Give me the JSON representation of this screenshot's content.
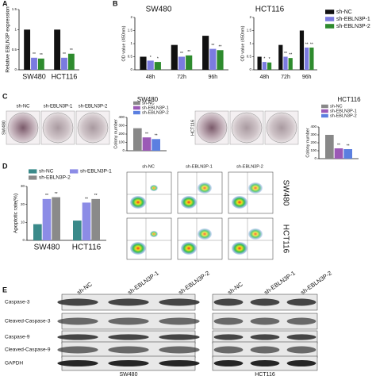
{
  "panel_labels": [
    "A",
    "B",
    "C",
    "D",
    "E"
  ],
  "chart_data": [
    {
      "type": "bar",
      "ylabel": "Relative EBLN3P expression",
      "categories": [
        "SW480",
        "HCT116"
      ],
      "ylim": [
        0,
        1.5
      ],
      "yticks": [
        0,
        0.5,
        1,
        1.5
      ],
      "legend": false,
      "series": [
        {
          "color": "#111111",
          "values": [
            1.0,
            1.0
          ]
        },
        {
          "color": "#7b7be0",
          "values": [
            0.3,
            0.3
          ],
          "significance": [
            "**",
            "**"
          ]
        },
        {
          "color": "#2e8b2e",
          "values": [
            0.28,
            0.4
          ],
          "significance": [
            "**",
            "**"
          ]
        }
      ]
    },
    {
      "type": "bar",
      "title": "SW480",
      "ylabel": "OD value (450nm)",
      "categories": [
        "48h",
        "72h",
        "96h"
      ],
      "ylim": [
        0,
        2
      ],
      "yticks": [
        0,
        0.5,
        1,
        1.5,
        2
      ],
      "legend": false,
      "series": [
        {
          "color": "#111111",
          "values": [
            0.5,
            0.95,
            1.3
          ]
        },
        {
          "color": "#7b7be0",
          "values": [
            0.35,
            0.5,
            0.8
          ],
          "significance": [
            "*",
            "**",
            "**"
          ]
        },
        {
          "color": "#2e8b2e",
          "values": [
            0.3,
            0.55,
            0.75
          ],
          "significance": [
            "*",
            "**",
            "**"
          ]
        }
      ]
    },
    {
      "type": "bar",
      "title": "HCT116",
      "ylabel": "OD value (450nm)",
      "categories": [
        "48h",
        "72h",
        "96h"
      ],
      "ylim": [
        0,
        2
      ],
      "yticks": [
        0,
        0.5,
        1,
        1.5,
        2
      ],
      "legend": true,
      "series": [
        {
          "name": "sh-NC",
          "color": "#111111",
          "values": [
            0.5,
            0.95,
            1.5
          ]
        },
        {
          "name": "sh-EBLN3P-1",
          "color": "#7b7be0",
          "values": [
            0.3,
            0.5,
            0.85
          ],
          "significance": [
            "*",
            "**",
            "**"
          ]
        },
        {
          "name": "sh-EBLN3P-2",
          "color": "#2e8b2e",
          "values": [
            0.28,
            0.45,
            0.85
          ],
          "significance": [
            "*",
            "**",
            "**"
          ]
        }
      ]
    },
    {
      "type": "bar",
      "title": "SW480",
      "ylabel": "Colony number",
      "categories": [
        null
      ],
      "ylim": [
        0,
        400
      ],
      "yticks": [
        0,
        100,
        200,
        300,
        400
      ],
      "legend": true,
      "series": [
        {
          "name": "sh-NC",
          "color": "#888888",
          "values": [
            270
          ]
        },
        {
          "name": "sh-EBLN3P-1",
          "color": "#9b59b6",
          "values": [
            160
          ],
          "significance": [
            "**"
          ]
        },
        {
          "name": "sh-EBLN3P-2",
          "color": "#5b7fe0",
          "values": [
            140
          ],
          "significance": [
            "**"
          ]
        }
      ]
    },
    {
      "type": "bar",
      "title": "HCT116",
      "ylabel": "Colony number",
      "categories": [
        null
      ],
      "ylim": [
        0,
        400
      ],
      "yticks": [
        0,
        100,
        200,
        300,
        400
      ],
      "legend": true,
      "series": [
        {
          "name": "sh-NC",
          "color": "#888888",
          "values": [
            300
          ]
        },
        {
          "name": "sh-EBLN3P-1",
          "color": "#9b59b6",
          "values": [
            130
          ],
          "significance": [
            "**"
          ]
        },
        {
          "name": "sh-EBLN3P-2",
          "color": "#5b7fe0",
          "values": [
            120
          ],
          "significance": [
            "**"
          ]
        }
      ]
    },
    {
      "type": "bar",
      "ylabel": "Apoptotic rate(%)",
      "categories": [
        "SW480",
        "HCT116"
      ],
      "ylim": [
        0,
        30
      ],
      "yticks": [
        0,
        10,
        20,
        30
      ],
      "legend": true,
      "series": [
        {
          "name": "sh-NC",
          "color": "#3a8a8a",
          "values": [
            9,
            11
          ]
        },
        {
          "name": "sh-EBLN3P-1",
          "color": "#8c8ce6",
          "values": [
            23,
            21
          ],
          "significance": [
            "**",
            "**"
          ]
        },
        {
          "name": "sh-EBLN3P-2",
          "color": "#8a8a8a",
          "values": [
            24,
            23
          ],
          "significance": [
            "**",
            "**"
          ]
        }
      ]
    }
  ],
  "colony": {
    "columns": [
      "sh-NC",
      "sh-EBLN3P-1",
      "sh-EBLN3P-2"
    ],
    "rows": [
      "SW480",
      "HCT116"
    ]
  },
  "flow": {
    "columns": [
      "sh-NC",
      "sh-EBLN3P-1",
      "sh-EBLN3P-2"
    ],
    "rows": [
      "SW480",
      "HCT116"
    ]
  },
  "western": {
    "columns": [
      "sh-NC",
      "sh-EBLN3P-1",
      "sh-EBLN3P-2",
      "sh-NC",
      "sh-EBLN3P-1",
      "sh-EBLN3P-2"
    ],
    "proteins": [
      "Caspase-3",
      "Cleaved-Caspase-3",
      "Caspase-9",
      "Cleaved-Caspase-9",
      "GAPDH"
    ],
    "cell_lines": [
      "SW480",
      "HCT116"
    ]
  }
}
